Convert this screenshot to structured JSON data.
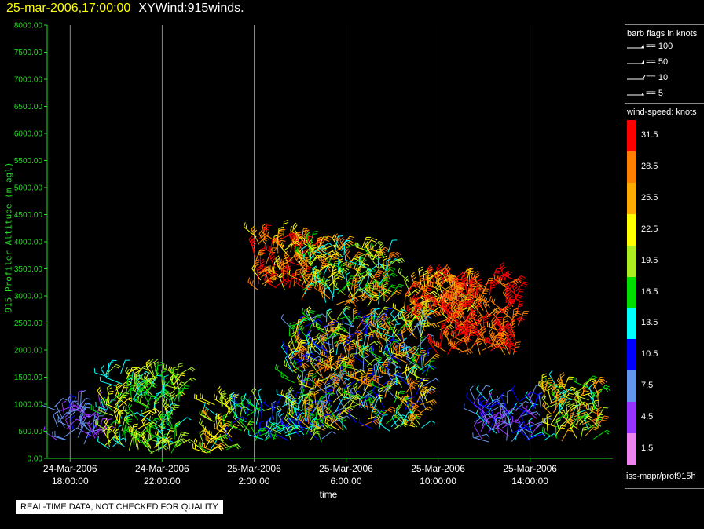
{
  "header": {
    "timestamp": "25-mar-2006,17:00:00",
    "product": "XYWind:915winds."
  },
  "chart_data": {
    "type": "scatter",
    "xlabel": "time",
    "ylabel": "915 Profiler Altitude (m agl)",
    "ylim": [
      0,
      8000
    ],
    "y_ticks": [
      "0.00",
      "500.00",
      "1000.00",
      "1500.00",
      "2000.00",
      "2500.00",
      "3000.00",
      "3500.00",
      "4000.00",
      "4500.00",
      "5000.00",
      "5500.00",
      "6000.00",
      "6500.00",
      "7000.00",
      "7500.00",
      "8000.00"
    ],
    "x_ticks": [
      {
        "date": "24-Mar-2006",
        "time": "18:00:00",
        "hour": 18
      },
      {
        "date": "24-Mar-2006",
        "time": "22:00:00",
        "hour": 22
      },
      {
        "date": "25-Mar-2006",
        "time": "2:00:00",
        "hour": 26
      },
      {
        "date": "25-Mar-2006",
        "time": "6:00:00",
        "hour": 30
      },
      {
        "date": "25-Mar-2006",
        "time": "10:00:00",
        "hour": 34
      },
      {
        "date": "25-Mar-2006",
        "time": "14:00:00",
        "hour": 38
      }
    ],
    "xlim_hours": [
      17.0,
      41.6
    ],
    "grid": "vertical at x ticks",
    "wind_regions": [
      {
        "t": [
          17.2,
          19.5
        ],
        "z": [
          250,
          950
        ],
        "speed": [
          3,
          10
        ]
      },
      {
        "t": [
          19.5,
          22.8
        ],
        "z": [
          80,
          1600
        ],
        "speed": [
          12,
          24
        ]
      },
      {
        "t": [
          23.8,
          25.0
        ],
        "z": [
          80,
          1100
        ],
        "speed": [
          14,
          26
        ]
      },
      {
        "t": [
          25.0,
          29.0
        ],
        "z": [
          300,
          1000
        ],
        "speed": [
          8,
          20
        ]
      },
      {
        "t": [
          26.0,
          28.5
        ],
        "z": [
          3100,
          4100
        ],
        "speed": [
          22,
          33
        ]
      },
      {
        "t": [
          28.0,
          32.0
        ],
        "z": [
          2800,
          3900
        ],
        "speed": [
          12,
          30
        ]
      },
      {
        "t": [
          27.5,
          33.5
        ],
        "z": [
          500,
          2600
        ],
        "speed": [
          6,
          30
        ]
      },
      {
        "t": [
          32.5,
          35.5
        ],
        "z": [
          2500,
          3300
        ],
        "speed": [
          20,
          33
        ]
      },
      {
        "t": [
          34.0,
          37.5
        ],
        "z": [
          1900,
          3300
        ],
        "speed": [
          26,
          34
        ]
      },
      {
        "t": [
          35.5,
          38.5
        ],
        "z": [
          300,
          1100
        ],
        "speed": [
          3,
          14
        ]
      },
      {
        "t": [
          38.5,
          41.0
        ],
        "z": [
          300,
          1350
        ],
        "speed": [
          12,
          28
        ]
      }
    ]
  },
  "barb_legend": {
    "title": "barb flags in knots",
    "items": [
      {
        "label": "== 100",
        "value": 100
      },
      {
        "label": "== 50",
        "value": 50
      },
      {
        "label": "== 10",
        "value": 10
      },
      {
        "label": "== 5",
        "value": 5
      }
    ]
  },
  "speed_legend": {
    "title": "wind-speed: knots",
    "bins": [
      {
        "label": "31.5",
        "color": "#ff0000"
      },
      {
        "label": "28.5",
        "color": "#ff7f00"
      },
      {
        "label": "25.5",
        "color": "#ffaa00"
      },
      {
        "label": "22.5",
        "color": "#ffff00"
      },
      {
        "label": "19.5",
        "color": "#aaee22"
      },
      {
        "label": "16.5",
        "color": "#00dd00"
      },
      {
        "label": "13.5",
        "color": "#00ffff"
      },
      {
        "label": "10.5",
        "color": "#0000ff"
      },
      {
        "label": "7.5",
        "color": "#6495ed"
      },
      {
        "label": "4.5",
        "color": "#9933ff"
      },
      {
        "label": "1.5",
        "color": "#ee82ee"
      }
    ]
  },
  "source": "iss-mapr/prof915h",
  "notice": "REAL-TIME DATA, NOT CHECKED FOR QUALITY",
  "colors": {
    "axis": "#22dd22",
    "grid": "#aaaaaa",
    "title_highlight": "#ffff00"
  }
}
